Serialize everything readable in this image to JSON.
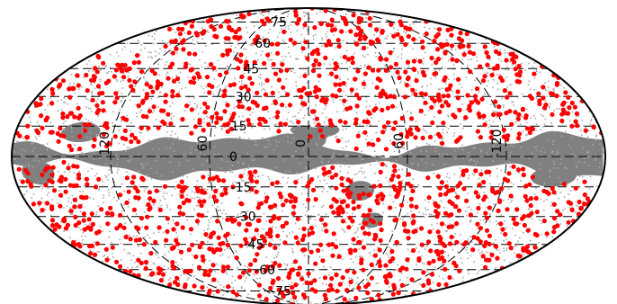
{
  "chart_data": {
    "type": "scatter",
    "projection": "mollweide",
    "grid": true,
    "lat_tick_labels": [
      "75",
      "60",
      "45",
      "30",
      "15",
      "0",
      "-15",
      "-30",
      "-45",
      "-60",
      "-75"
    ],
    "lon_tick_labels": [
      "120",
      "60",
      "0",
      "-60",
      "-120"
    ],
    "colors": {
      "points": "#ff0000",
      "mask_band": "#808080",
      "mask_speckle": "#a6a6a6",
      "grid": "#000000",
      "outline": "#000000",
      "background": "#ffffff"
    },
    "points_approx_count": 1500
  }
}
